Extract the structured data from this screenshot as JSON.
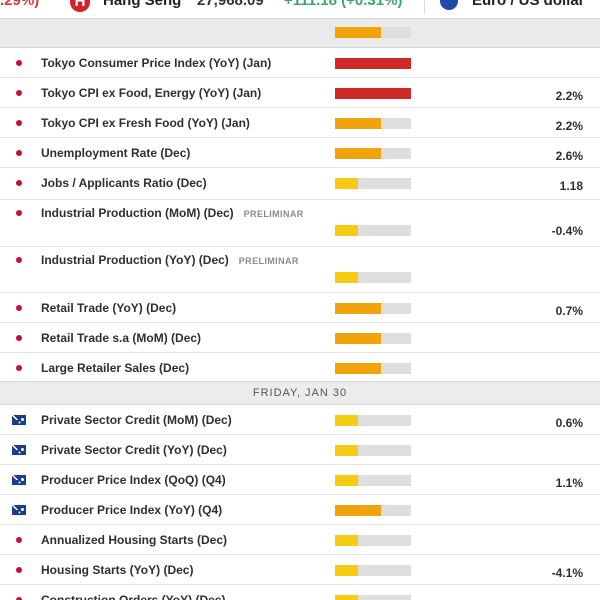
{
  "ticker": {
    "prev_change": ".29%)",
    "hang_seng": {
      "logo": "H",
      "name": "Hang Seng",
      "value": "27,968.09",
      "change": "+111.18 (+0.31%)"
    },
    "eurusd": {
      "name": "Euro / US dollar"
    }
  },
  "colors": {
    "high": "#cf2a27",
    "medium": "#f0a30a",
    "low": "#f6cb14",
    "track": "#dedede"
  },
  "events_thursday": [
    {
      "country": "JP",
      "name": "Tokyo Consumer Price Index (YoY) (Jan)",
      "tag": "",
      "importance": "high",
      "actual": ""
    },
    {
      "country": "JP",
      "name": "Tokyo CPI ex Food, Energy (YoY) (Jan)",
      "tag": "",
      "importance": "high",
      "actual": "2.2%"
    },
    {
      "country": "JP",
      "name": "Tokyo CPI ex Fresh Food (YoY) (Jan)",
      "tag": "",
      "importance": "medium",
      "actual": "2.2%"
    },
    {
      "country": "JP",
      "name": "Unemployment Rate (Dec)",
      "tag": "",
      "importance": "medium",
      "actual": "2.6%"
    },
    {
      "country": "JP",
      "name": "Jobs / Applicants Ratio (Dec)",
      "tag": "",
      "importance": "low",
      "actual": "1.18"
    },
    {
      "country": "JP",
      "name": "Industrial Production (MoM) (Dec)",
      "tag": "PRELIMINAR",
      "importance": "low",
      "actual": "-0.4%"
    },
    {
      "country": "JP",
      "name": "Industrial Production (YoY) (Dec)",
      "tag": "PRELIMINAR",
      "importance": "low",
      "actual": ""
    },
    {
      "country": "JP",
      "name": "Retail Trade (YoY) (Dec)",
      "tag": "",
      "importance": "medium",
      "actual": "0.7%"
    },
    {
      "country": "JP",
      "name": "Retail Trade s.a (MoM) (Dec)",
      "tag": "",
      "importance": "medium",
      "actual": ""
    },
    {
      "country": "JP",
      "name": "Large Retailer Sales (Dec)",
      "tag": "",
      "importance": "medium",
      "actual": ""
    }
  ],
  "day_header": "FRIDAY, JAN 30",
  "events_friday": [
    {
      "country": "AU",
      "name": "Private Sector Credit (MoM) (Dec)",
      "tag": "",
      "importance": "low",
      "actual": "0.6%"
    },
    {
      "country": "AU",
      "name": "Private Sector Credit (YoY) (Dec)",
      "tag": "",
      "importance": "low",
      "actual": ""
    },
    {
      "country": "AU",
      "name": "Producer Price Index (QoQ) (Q4)",
      "tag": "",
      "importance": "low",
      "actual": "1.1%"
    },
    {
      "country": "AU",
      "name": "Producer Price Index (YoY) (Q4)",
      "tag": "",
      "importance": "medium",
      "actual": ""
    },
    {
      "country": "JP",
      "name": "Annualized Housing Starts (Dec)",
      "tag": "",
      "importance": "low",
      "actual": ""
    },
    {
      "country": "JP",
      "name": "Housing Starts (YoY) (Dec)",
      "tag": "",
      "importance": "low",
      "actual": "-4.1%"
    },
    {
      "country": "JP",
      "name": "Construction Orders (YoY) (Dec)",
      "tag": "",
      "importance": "low",
      "actual": ""
    }
  ]
}
